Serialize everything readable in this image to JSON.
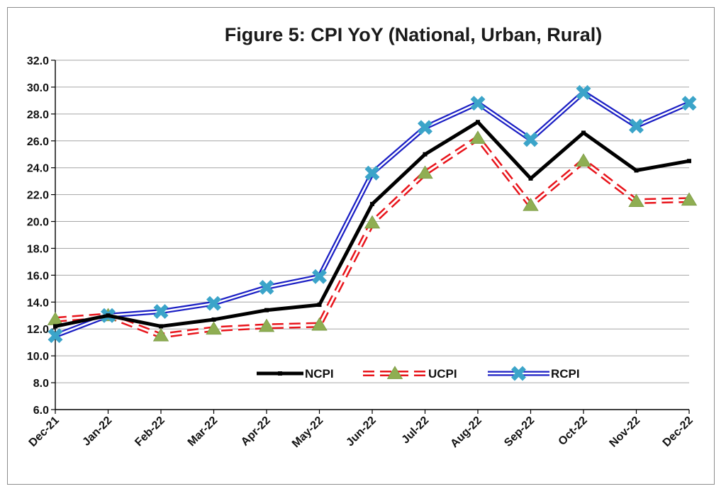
{
  "chart_data": {
    "type": "line",
    "title": "Figure 5: CPI YoY (National, Urban, Rural)",
    "xlabel": "",
    "ylabel": "",
    "ylim": [
      6.0,
      32.0
    ],
    "ytick_step": 2.0,
    "ytick_labels": [
      "6.0",
      "8.0",
      "10.0",
      "12.0",
      "14.0",
      "16.0",
      "18.0",
      "20.0",
      "22.0",
      "24.0",
      "26.0",
      "28.0",
      "30.0",
      "32.0"
    ],
    "grid": true,
    "legend_position": "bottom-center",
    "categories": [
      "Dec-21",
      "Jan-22",
      "Feb-22",
      "Mar-22",
      "Apr-22",
      "May-22",
      "Jun-22",
      "Jul-22",
      "Aug-22",
      "Sep-22",
      "Oct-22",
      "Nov-22",
      "Dec-22"
    ],
    "series": [
      {
        "name": "NCPI",
        "marker": "dash",
        "color": "#000000",
        "values": [
          12.2,
          13.0,
          12.2,
          12.7,
          13.4,
          13.8,
          21.3,
          25.0,
          27.4,
          23.2,
          26.6,
          23.8,
          24.5
        ]
      },
      {
        "name": "UCPI",
        "marker": "triangle",
        "color": "#e8141b",
        "marker_color": "#8fae52",
        "values": [
          12.7,
          13.0,
          11.5,
          12.0,
          12.2,
          12.3,
          19.9,
          23.6,
          26.2,
          21.2,
          24.5,
          21.5,
          21.6
        ]
      },
      {
        "name": "RCPI",
        "marker": "x",
        "color": "#1b1fc4",
        "marker_color": "#3ba4c9",
        "values": [
          11.5,
          13.0,
          13.3,
          13.9,
          15.1,
          15.9,
          23.6,
          27.0,
          28.8,
          26.1,
          29.6,
          27.1,
          28.8
        ]
      }
    ]
  }
}
